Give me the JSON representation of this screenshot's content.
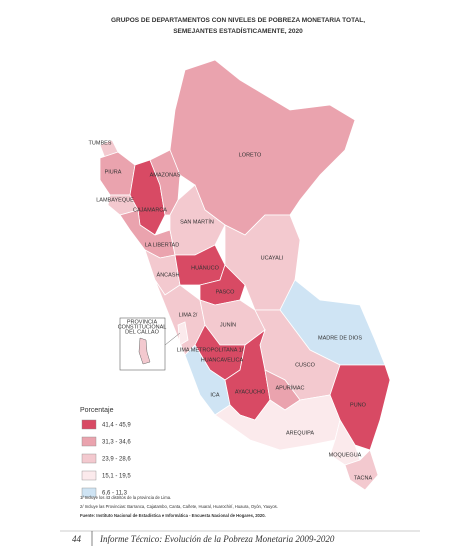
{
  "title": [
    "GRUPOS DE DEPARTAMENTOS CON NIVELES DE POBREZA MONETARIA TOTAL,",
    "SEMEJANTES ESTADÍSTICAMENTE, 2020"
  ],
  "regions": [
    {
      "label": "LORETO",
      "color": "#eaa3ae"
    },
    {
      "label": "TUMBES",
      "color": "#f3c9cf"
    },
    {
      "label": "PIURA",
      "color": "#eaa3ae"
    },
    {
      "label": "LAMBAYEQUE",
      "color": "#f3c9cf"
    },
    {
      "label": "CAJAMARCA",
      "color": "#d84a64"
    },
    {
      "label": "AMAZONAS",
      "color": "#eaa3ae"
    },
    {
      "label": "LA LIBERTAD",
      "color": "#eaa3ae"
    },
    {
      "label": "SAN MARTÍN",
      "color": "#f3c9cf"
    },
    {
      "label": "ÁNCASH",
      "color": "#f3c9cf"
    },
    {
      "label": "HUÁNUCO",
      "color": "#d84a64"
    },
    {
      "label": "UCAYALI",
      "color": "#f3c9cf"
    },
    {
      "label": "PASCO",
      "color": "#d84a64"
    },
    {
      "label": "LIMA 2/",
      "color": "#f3c9cf"
    },
    {
      "label": "JUNÍN",
      "color": "#f3c9cf"
    },
    {
      "label": "MADRE DE DIOS",
      "color": "#cfe4f4"
    },
    {
      "label": "CUSCO",
      "color": "#f3c9cf"
    },
    {
      "label": "HUANCAVELICA",
      "color": "#d84a64"
    },
    {
      "label": "ICA",
      "color": "#cfe4f4"
    },
    {
      "label": "AYACUCHO",
      "color": "#d84a64"
    },
    {
      "label": "APURÍMAC",
      "color": "#eaa3ae"
    },
    {
      "label": "PUNO",
      "color": "#d84a64"
    },
    {
      "label": "AREQUIPA",
      "color": "#fbeaec"
    },
    {
      "label": "MOQUEGUA",
      "color": "#fbeaec"
    },
    {
      "label": "TACNA",
      "color": "#f3c9cf"
    },
    {
      "label": "LIMA METROPOLITANA 1/",
      "color": "#fbeaec"
    }
  ],
  "inset": [
    "PROVINCIA",
    "CONSTITUCIONAL",
    "DEL CALLAO"
  ],
  "legend": {
    "title": "Porcentaje",
    "items": [
      {
        "label": "41,4 - 45,9",
        "color": "#d84a64"
      },
      {
        "label": "31,3 - 34,6",
        "color": "#eaa3ae"
      },
      {
        "label": "23,9 - 28,6",
        "color": "#f3c9cf"
      },
      {
        "label": "15,1 - 19,5",
        "color": "#fbeaec"
      },
      {
        "label": "6,6 - 11,3",
        "color": "#cfe4f4"
      }
    ]
  },
  "notes": [
    "1/ Incluye los 43 distritos de la provincia de Lima.",
    "2/ Incluye las Provincias: Barranca, Cajatambo, Canta, Cañete, Huaral, Huarochirí, Huaura, Oyón, Yauyos."
  ],
  "source": "Fuente: Instituto Nacional de Estadística e Informática - Encuesta Nacional de Hogares, 2020.",
  "footer": {
    "page": "44",
    "text": "Informe Técnico: Evolución de la Pobreza Monetaria 2009-2020"
  }
}
